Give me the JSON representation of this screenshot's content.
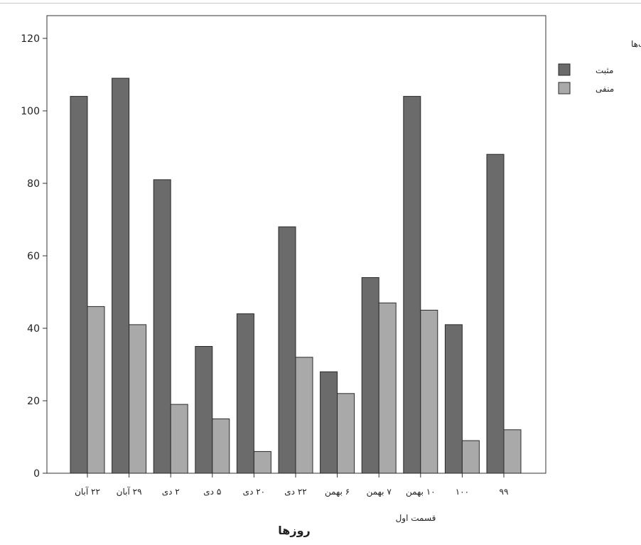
{
  "chart_data": {
    "type": "bar",
    "categories": [
      "۲۲ آبان",
      "۲۹ آبان",
      "۲ دی",
      "۵ دی",
      "۲۰ دی",
      "۲۲ دی",
      "۶ بهمن",
      "۷ بهمن",
      "۱۰ بهمن",
      "۱۰۰",
      "۹۹"
    ],
    "category_note": "قسمت اول",
    "series": [
      {
        "name": "مثبت",
        "color": "#6b6b6b",
        "values": [
          104,
          109,
          81,
          35,
          44,
          68,
          28,
          54,
          104,
          41,
          88
        ]
      },
      {
        "name": "منفی",
        "color": "#a9a9a9",
        "values": [
          46,
          41,
          19,
          15,
          6,
          32,
          22,
          47,
          45,
          9,
          12
        ]
      }
    ],
    "xlabel": "روزها",
    "ylabel": "",
    "ylim": [
      0,
      120
    ],
    "yticks": [
      0,
      20,
      40,
      60,
      80,
      100,
      120
    ],
    "legend_title": "سوگیری کامنت‌ها",
    "legend_position": "right",
    "grid": false
  }
}
